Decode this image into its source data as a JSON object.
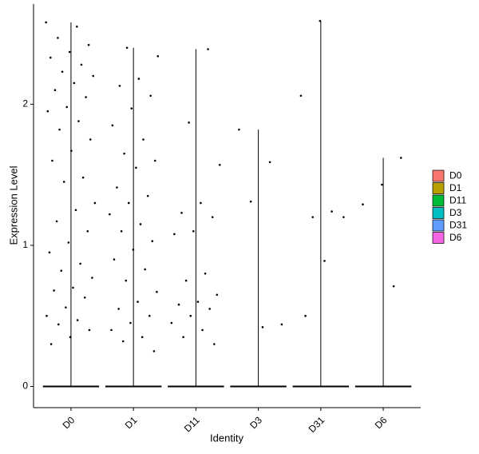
{
  "chart_data": {
    "type": "violin",
    "x_label": "Identity",
    "y_label": "Expression Level",
    "categories": [
      "D0",
      "D1",
      "D11",
      "D3",
      "D31",
      "D6"
    ],
    "series": [
      {
        "name": "D0",
        "color": "#F8766D",
        "values": [
          2.58,
          2.55,
          2.47,
          2.42,
          2.37,
          2.33,
          2.28,
          2.23,
          2.2,
          2.15,
          2.1,
          2.05,
          1.98,
          1.95,
          1.88,
          1.82,
          1.75,
          1.67,
          1.6,
          1.48,
          1.45,
          1.3,
          1.25,
          1.17,
          1.1,
          1.02,
          0.95,
          0.87,
          0.82,
          0.77,
          0.7,
          0.68,
          0.63,
          0.56,
          0.5,
          0.47,
          0.44,
          0.4,
          0.35,
          0.3
        ]
      },
      {
        "name": "D1",
        "color": "#B79F00",
        "values": [
          2.4,
          2.34,
          2.18,
          2.13,
          2.06,
          1.97,
          1.85,
          1.75,
          1.65,
          1.6,
          1.55,
          1.41,
          1.35,
          1.3,
          1.22,
          1.15,
          1.1,
          1.03,
          0.97,
          0.9,
          0.83,
          0.75,
          0.67,
          0.6,
          0.55,
          0.5,
          0.45,
          0.4,
          0.35,
          0.32,
          0.25
        ]
      },
      {
        "name": "D11",
        "color": "#00BA38",
        "values": [
          2.39,
          1.87,
          1.57,
          1.3,
          1.23,
          1.2,
          1.1,
          1.08,
          0.8,
          0.75,
          0.65,
          0.6,
          0.58,
          0.55,
          0.5,
          0.45,
          0.4,
          0.35,
          0.3
        ]
      },
      {
        "name": "D3",
        "color": "#00BFC4",
        "values": [
          1.82,
          1.59,
          1.31,
          0.44,
          0.42
        ]
      },
      {
        "name": "D31",
        "color": "#619CFF",
        "values": [
          2.59,
          2.06,
          1.24,
          1.2,
          1.2,
          0.89,
          0.5
        ]
      },
      {
        "name": "D6",
        "color": "#F564E3",
        "values": [
          1.62,
          1.43,
          1.29,
          0.71
        ]
      }
    ],
    "ylim": [
      -0.15,
      2.71
    ],
    "yticks": [
      0,
      1,
      2
    ],
    "grid": false,
    "legend": "right"
  }
}
